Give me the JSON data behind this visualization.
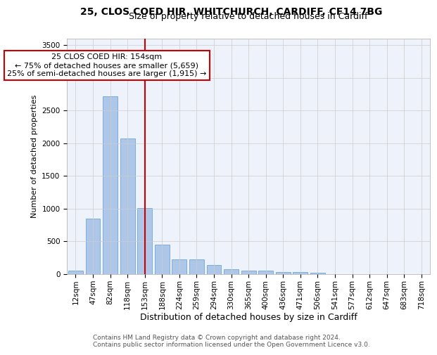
{
  "title_line1": "25, CLOS COED HIR, WHITCHURCH, CARDIFF, CF14 7BG",
  "title_line2": "Size of property relative to detached houses in Cardiff",
  "xlabel": "Distribution of detached houses by size in Cardiff",
  "ylabel": "Number of detached properties",
  "bar_color": "#aec6e8",
  "bar_edge_color": "#5b9bd5",
  "background_color": "#eef2fa",
  "categories": [
    "12sqm",
    "47sqm",
    "82sqm",
    "118sqm",
    "153sqm",
    "188sqm",
    "224sqm",
    "259sqm",
    "294sqm",
    "330sqm",
    "365sqm",
    "400sqm",
    "436sqm",
    "471sqm",
    "506sqm",
    "541sqm",
    "577sqm",
    "612sqm",
    "647sqm",
    "683sqm",
    "718sqm"
  ],
  "values": [
    55,
    850,
    2720,
    2075,
    1010,
    455,
    230,
    230,
    135,
    70,
    55,
    50,
    35,
    30,
    20,
    5,
    3,
    2,
    1,
    1,
    0
  ],
  "red_line_index": 4,
  "ylim": [
    0,
    3600
  ],
  "yticks": [
    0,
    500,
    1000,
    1500,
    2000,
    2500,
    3000,
    3500
  ],
  "annotation_text": "25 CLOS COED HIR: 154sqm\n← 75% of detached houses are smaller (5,659)\n25% of semi-detached houses are larger (1,915) →",
  "annotation_box_color": "#ffffff",
  "annotation_box_edge": "#cc0000",
  "footer_line1": "Contains HM Land Registry data © Crown copyright and database right 2024.",
  "footer_line2": "Contains public sector information licensed under the Open Government Licence v3.0.",
  "title_fontsize": 10,
  "subtitle_fontsize": 9,
  "xlabel_fontsize": 9,
  "ylabel_fontsize": 8,
  "tick_fontsize": 7.5,
  "annotation_fontsize": 8,
  "footer_fontsize": 6.5
}
